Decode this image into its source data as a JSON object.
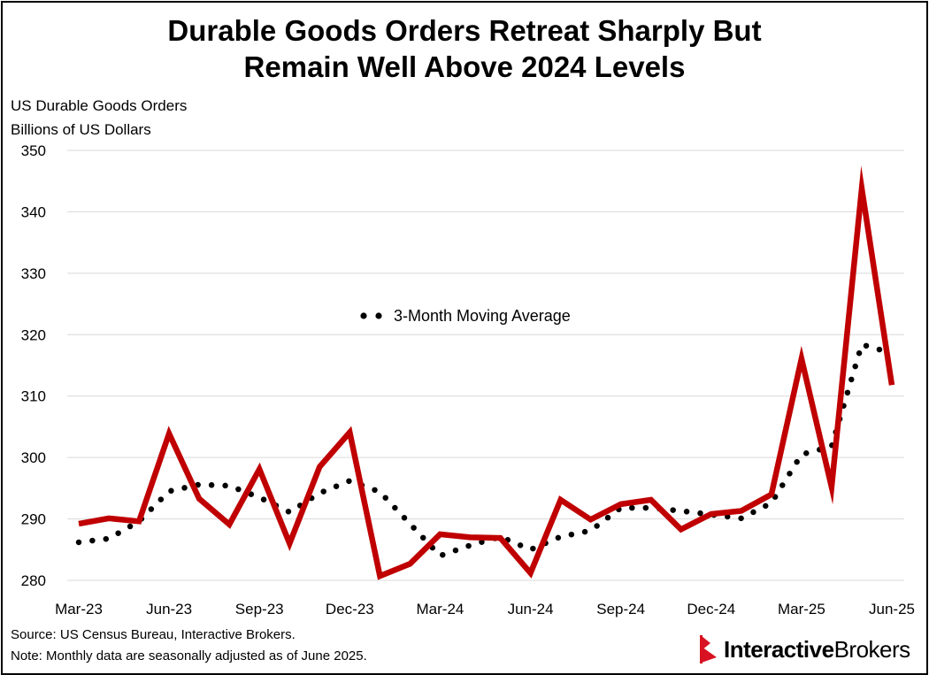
{
  "title_lines": [
    "Durable Goods Orders Retreat Sharply But",
    "Remain Well Above 2024 Levels"
  ],
  "ylabel_lines": [
    "US Durable Goods Orders",
    "Billions of US Dollars"
  ],
  "footer": {
    "source": "Source: US Census Bureau, Interactive Brokers.",
    "note": "Note: Monthly data are seasonally adjusted as of June 2025."
  },
  "logo": {
    "bold": "Interactive",
    "regular": "Brokers",
    "icon": "ib-flag-logo"
  },
  "colors": {
    "series": "#c00000",
    "ma": "#000000",
    "grid": "#d9d9d9"
  },
  "chart_data": {
    "type": "line",
    "title": "Durable Goods Orders Retreat Sharply But Remain Well Above 2024 Levels",
    "ylabel": "US Durable Goods Orders, Billions of US Dollars",
    "ylim": [
      280,
      350
    ],
    "yticks": [
      280,
      290,
      300,
      310,
      320,
      330,
      340,
      350
    ],
    "grid": true,
    "x": [
      "Mar-23",
      "Apr-23",
      "May-23",
      "Jun-23",
      "Jul-23",
      "Aug-23",
      "Sep-23",
      "Oct-23",
      "Nov-23",
      "Dec-23",
      "Jan-24",
      "Feb-24",
      "Mar-24",
      "Apr-24",
      "May-24",
      "Jun-24",
      "Jul-24",
      "Aug-24",
      "Sep-24",
      "Oct-24",
      "Nov-24",
      "Dec-24",
      "Jan-25",
      "Feb-25",
      "Mar-25",
      "Apr-25",
      "May-25",
      "Jun-25"
    ],
    "xtick_labels": [
      "Mar-23",
      "Jun-23",
      "Sep-23",
      "Dec-23",
      "Mar-24",
      "Jun-24",
      "Sep-24",
      "Dec-24",
      "Mar-25",
      "Jun-25"
    ],
    "series": [
      {
        "name": "US Durable Goods Orders",
        "style": "solid",
        "values": [
          289.2,
          290.1,
          289.6,
          303.9,
          293.3,
          289.1,
          298.1,
          286.0,
          298.5,
          304.1,
          280.7,
          282.7,
          287.5,
          287.0,
          286.9,
          281.2,
          293.1,
          289.9,
          292.4,
          293.1,
          288.3,
          290.8,
          291.3,
          294.0,
          316.1,
          295.2,
          343.8,
          311.8
        ]
      },
      {
        "name": "3-Month Moving Average",
        "style": "dotted",
        "values": [
          286.2,
          286.8,
          289.6,
          294.5,
          295.6,
          295.4,
          293.5,
          291.1,
          294.2,
          296.2,
          294.4,
          289.2,
          284.0,
          285.7,
          287.1,
          285.0,
          287.1,
          288.1,
          291.8,
          291.8,
          291.3,
          290.7,
          290.1,
          292.6,
          300.5,
          301.8,
          318.4,
          317.0
        ]
      }
    ],
    "legend": {
      "text": "3-Month Moving Average",
      "placement": "center"
    }
  }
}
